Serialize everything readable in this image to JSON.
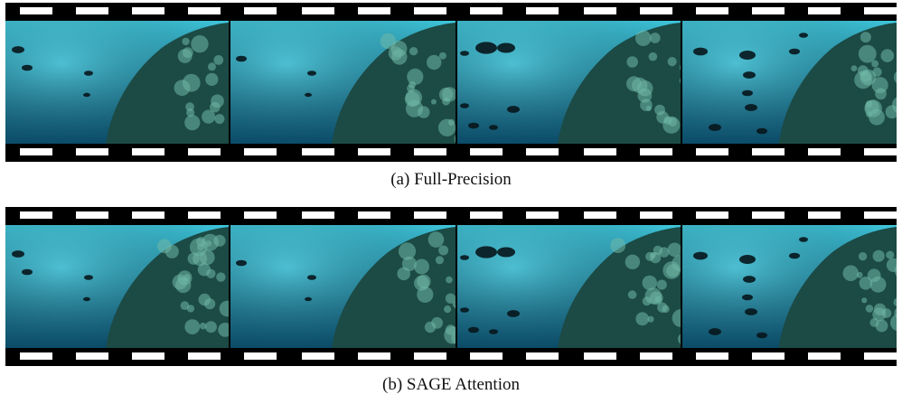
{
  "figure": {
    "strips": [
      {
        "id": "full-precision",
        "caption": "(a) Full-Precision",
        "frames": [
          {
            "scene": "coral-reef-underwater",
            "fish_count": 4
          },
          {
            "scene": "coral-reef-underwater",
            "fish_count": 3
          },
          {
            "scene": "coral-reef-underwater",
            "fish_count": 7
          },
          {
            "scene": "coral-reef-underwater",
            "fish_count": 9
          }
        ]
      },
      {
        "id": "sage-attention",
        "caption": "(b) SAGE Attention",
        "frames": [
          {
            "scene": "coral-reef-underwater",
            "fish_count": 4
          },
          {
            "scene": "coral-reef-underwater",
            "fish_count": 3
          },
          {
            "scene": "coral-reef-underwater",
            "fish_count": 7
          },
          {
            "scene": "coral-reef-underwater",
            "fish_count": 9
          }
        ]
      }
    ],
    "colors": {
      "film": "#000000",
      "sprocket": "#ffffff",
      "water_light": "#3ec7dd",
      "water_dark": "#0b4f6e",
      "coral": "#1c4a45"
    }
  }
}
